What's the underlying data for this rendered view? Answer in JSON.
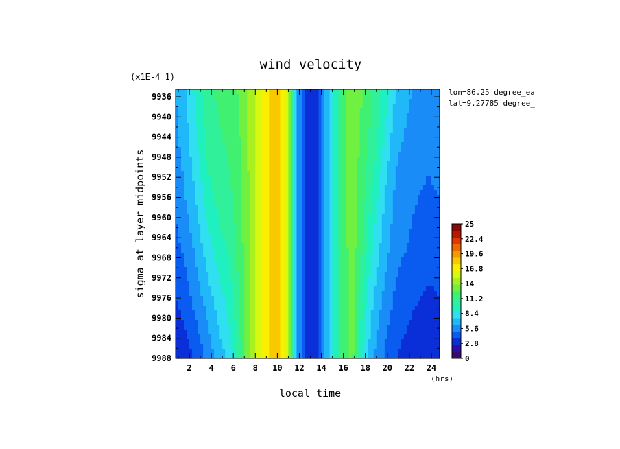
{
  "chart_data": {
    "type": "heatmap",
    "title": "wind velocity",
    "xlabel": "local time",
    "ylabel": "sigma at layer midpoints",
    "x_unit": "(hrs)",
    "y_scale_note": "(x1E-4 1)",
    "annotations": [
      "lon=86.25 degree_ea",
      "lat=9.27785 degree_"
    ],
    "xlim": [
      0.75,
      24.75
    ],
    "ylim": [
      9934.5,
      9988
    ],
    "y_inverted": true,
    "x_ticks": [
      2,
      4,
      6,
      8,
      10,
      12,
      14,
      16,
      18,
      20,
      22,
      24
    ],
    "y_ticks": [
      9936,
      9940,
      9944,
      9948,
      9952,
      9956,
      9960,
      9964,
      9968,
      9972,
      9976,
      9980,
      9984,
      9988
    ],
    "colorbar": {
      "min": 0,
      "max": 25,
      "tick_labels": [
        "0",
        "2.8",
        "5.6",
        "8.4",
        "11.2",
        "14",
        "16.8",
        "19.6",
        "22.4",
        "25"
      ],
      "colors": [
        "#3a0a6e",
        "#2a10a8",
        "#0a2ed8",
        "#0a5cf0",
        "#1a8cf8",
        "#20b8f8",
        "#30e0f0",
        "#20f0c0",
        "#30f09a",
        "#40f070",
        "#70f040",
        "#a8f020",
        "#d8f810",
        "#f8f000",
        "#f8c800",
        "#f89800",
        "#f06800",
        "#e03800",
        "#b81800",
        "#8a0a0a"
      ]
    },
    "x": [
      0.75,
      1.75,
      2.75,
      3.75,
      4.75,
      5.75,
      6.75,
      7.75,
      8.75,
      9.75,
      10.75,
      11.75,
      12.75,
      13.75,
      14.75,
      15.75,
      16.75,
      17.75,
      18.75,
      19.75,
      20.75,
      21.75,
      22.75,
      23.75,
      24.75
    ],
    "y": [
      9935,
      9946,
      9956,
      9966,
      9975,
      9988
    ],
    "values": [
      [
        6.2,
        7.6,
        9.5,
        11.0,
        11.5,
        12.0,
        12.8,
        14.5,
        16.5,
        19.0,
        16.5,
        6.5,
        2.5,
        3.5,
        8.0,
        11.0,
        13.5,
        12.5,
        11.0,
        9.5,
        7.5,
        6.5,
        6.0,
        5.8,
        6.0
      ],
      [
        5.8,
        7.0,
        8.6,
        10.5,
        11.0,
        11.5,
        12.6,
        14.5,
        16.5,
        19.0,
        16.5,
        6.5,
        2.5,
        3.5,
        8.0,
        11.0,
        13.5,
        12.0,
        10.5,
        8.5,
        6.5,
        6.0,
        5.5,
        5.2,
        5.5
      ],
      [
        5.2,
        6.4,
        7.8,
        9.5,
        10.5,
        11.0,
        12.4,
        14.5,
        16.5,
        19.0,
        16.5,
        6.5,
        2.5,
        3.5,
        8.0,
        11.0,
        13.5,
        11.5,
        9.5,
        7.5,
        6.0,
        5.5,
        5.0,
        4.8,
        5.0
      ],
      [
        4.6,
        5.4,
        6.8,
        8.3,
        9.5,
        10.3,
        12.2,
        14.5,
        16.5,
        19.0,
        16.5,
        6.5,
        2.5,
        3.5,
        8.0,
        11.0,
        13.4,
        11.0,
        8.5,
        6.8,
        5.5,
        5.0,
        4.5,
        4.3,
        4.5
      ],
      [
        3.8,
        4.6,
        5.8,
        7.1,
        8.5,
        9.5,
        12.0,
        14.5,
        16.5,
        19.0,
        16.5,
        6.5,
        2.5,
        3.5,
        8.0,
        11.0,
        13.3,
        10.0,
        7.5,
        6.0,
        4.8,
        4.3,
        3.9,
        3.6,
        3.8
      ],
      [
        2.6,
        3.2,
        4.2,
        5.5,
        6.8,
        8.2,
        11.5,
        14.5,
        16.5,
        19.0,
        16.5,
        6.5,
        2.5,
        3.5,
        8.0,
        11.0,
        13.0,
        8.8,
        6.2,
        4.8,
        3.8,
        3.3,
        2.9,
        2.5,
        2.6
      ]
    ]
  }
}
